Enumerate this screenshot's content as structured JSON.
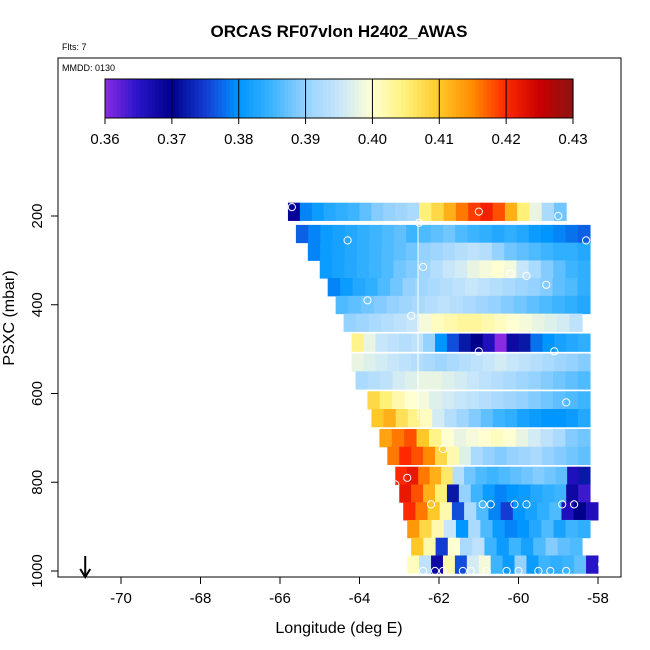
{
  "chart_data": {
    "type": "heatmap",
    "title": "ORCAS RF07vlon H2402_AWAS",
    "annotations": [
      "Flts: 7",
      "MMDD: 0130"
    ],
    "xlabel": "Longitude (deg E)",
    "ylabel": "PSXC (mbar)",
    "xlim": [
      -71.5,
      -57.5
    ],
    "ylim": [
      1010,
      100
    ],
    "y_reversed": true,
    "x_ticks": [
      "-70",
      "-68",
      "-66",
      "-64",
      "-62",
      "-60",
      "-58"
    ],
    "x_tick_values": [
      -70,
      -68,
      -66,
      -64,
      -62,
      -60,
      -58
    ],
    "y_ticks": [
      "200",
      "400",
      "600",
      "800",
      "1000"
    ],
    "y_tick_values": [
      200,
      400,
      600,
      800,
      1000
    ],
    "colorbar": {
      "ticks": [
        "0.36",
        "0.37",
        "0.38",
        "0.39",
        "0.40",
        "0.41",
        "0.42",
        "0.43"
      ],
      "tick_values": [
        0.36,
        0.37,
        0.38,
        0.39,
        0.4,
        0.41,
        0.42,
        0.43
      ],
      "range": [
        0.36,
        0.43
      ]
    },
    "arrow_longitude": -70.9,
    "cells": [
      {
        "p": 190,
        "x": [
          -65.8,
          -62.5
        ],
        "v": [
          0.369,
          0.379,
          0.381,
          0.383,
          0.384,
          0.385,
          0.387,
          0.389,
          0.39,
          0.391,
          0.392
        ]
      },
      {
        "p": 190,
        "x": [
          -62.5,
          -58.8
        ],
        "v": [
          0.405,
          0.408,
          0.412,
          0.416,
          0.419,
          0.421,
          0.418,
          0.412,
          0.405,
          0.398,
          0.392,
          0.388
        ]
      },
      {
        "p": 240,
        "x": [
          -65.6,
          -58.2
        ],
        "v": [
          0.377,
          0.379,
          0.381,
          0.382,
          0.383,
          0.384,
          0.385,
          0.386,
          0.387,
          0.385,
          0.386,
          0.387,
          0.388,
          0.386,
          0.385,
          0.384,
          0.383,
          0.384,
          0.383,
          0.381,
          0.38,
          0.379,
          0.378,
          0.377
        ]
      },
      {
        "p": 280,
        "x": [
          -65.3,
          -58.2
        ],
        "v": [
          0.379,
          0.381,
          0.382,
          0.383,
          0.384,
          0.385,
          0.386,
          0.387,
          0.388,
          0.39,
          0.391,
          0.392,
          0.393,
          0.394,
          0.393,
          0.39,
          0.388,
          0.387,
          0.386,
          0.385,
          0.384,
          0.384,
          0.383
        ]
      },
      {
        "p": 320,
        "x": [
          -65.0,
          -58.2
        ],
        "v": [
          0.381,
          0.382,
          0.383,
          0.384,
          0.385,
          0.386,
          0.388,
          0.389,
          0.391,
          0.393,
          0.395,
          0.396,
          0.398,
          0.399,
          0.4,
          0.399,
          0.395,
          0.392,
          0.389,
          0.387,
          0.385,
          0.384
        ]
      },
      {
        "p": 360,
        "x": [
          -64.8,
          -58.2
        ],
        "v": [
          0.379,
          0.381,
          0.383,
          0.384,
          0.386,
          0.388,
          0.39,
          0.391,
          0.392,
          0.393,
          0.394,
          0.395,
          0.394,
          0.393,
          0.392,
          0.391,
          0.39,
          0.389,
          0.387,
          0.386,
          0.384
        ]
      },
      {
        "p": 400,
        "x": [
          -64.6,
          -58.2
        ],
        "v": [
          0.386,
          0.387,
          0.388,
          0.389,
          0.39,
          0.391,
          0.392,
          0.393,
          0.394,
          0.393,
          0.392,
          0.391,
          0.39,
          0.389,
          0.388,
          0.387,
          0.386,
          0.385,
          0.384,
          0.383
        ]
      },
      {
        "p": 440,
        "x": [
          -64.4,
          -58.4
        ],
        "v": [
          0.39,
          0.391,
          0.392,
          0.393,
          0.394,
          0.395,
          0.399,
          0.401,
          0.402,
          0.403,
          0.403,
          0.402,
          0.401,
          0.4,
          0.399,
          0.398,
          0.397,
          0.396,
          0.394
        ]
      },
      {
        "p": 485,
        "x": [
          -64.2,
          -58.2
        ],
        "v": [
          0.404,
          0.398,
          0.395,
          0.394,
          0.393,
          0.394,
          0.39,
          0.38,
          0.376,
          0.372,
          0.37,
          0.366,
          0.36,
          0.368,
          0.372,
          0.378,
          0.38,
          0.382,
          0.383,
          0.384
        ]
      },
      {
        "p": 530,
        "x": [
          -64.2,
          -58.2
        ],
        "v": [
          0.398,
          0.397,
          0.396,
          0.395,
          0.394,
          0.393,
          0.392,
          0.391,
          0.392,
          0.393,
          0.394,
          0.395,
          0.396,
          0.395,
          0.394,
          0.393,
          0.392,
          0.391,
          0.39,
          0.389
        ]
      },
      {
        "p": 570,
        "x": [
          -64.1,
          -58.2
        ],
        "v": [
          0.392,
          0.393,
          0.394,
          0.396,
          0.397,
          0.398,
          0.398,
          0.397,
          0.396,
          0.395,
          0.394,
          0.393,
          0.392,
          0.391,
          0.39,
          0.389,
          0.388,
          0.387,
          0.386
        ]
      },
      {
        "p": 615,
        "x": [
          -63.8,
          -58.2
        ],
        "v": [
          0.408,
          0.405,
          0.402,
          0.4,
          0.399,
          0.397,
          0.396,
          0.395,
          0.394,
          0.393,
          0.392,
          0.391,
          0.39,
          0.389,
          0.388,
          0.387,
          0.386,
          0.385
        ]
      },
      {
        "p": 655,
        "x": [
          -63.7,
          -58.2
        ],
        "v": [
          0.41,
          0.412,
          0.407,
          0.404,
          0.401,
          0.396,
          0.393,
          0.391,
          0.389,
          0.387,
          0.385,
          0.384,
          0.382,
          0.381,
          0.38,
          0.38,
          0.381,
          0.383
        ]
      },
      {
        "p": 700,
        "x": [
          -63.5,
          -58.2
        ],
        "v": [
          0.413,
          0.416,
          0.418,
          0.41,
          0.404,
          0.4,
          0.398,
          0.399,
          0.4,
          0.401,
          0.4,
          0.398,
          0.396,
          0.394,
          0.392,
          0.389,
          0.388
        ]
      },
      {
        "p": 740,
        "x": [
          -63.3,
          -58.2
        ],
        "v": [
          0.416,
          0.42,
          0.418,
          0.415,
          0.408,
          0.402,
          0.397,
          0.392,
          0.39,
          0.389,
          0.39,
          0.391,
          0.392,
          0.39,
          0.389,
          0.388,
          0.387
        ]
      },
      {
        "p": 785,
        "x": [
          -63.1,
          -58.2
        ],
        "v": [
          0.42,
          0.422,
          0.416,
          0.412,
          0.406,
          0.393,
          0.388,
          0.386,
          0.385,
          0.386,
          0.387,
          0.388,
          0.389,
          0.388,
          0.387,
          0.366,
          0.372
        ]
      },
      {
        "p": 825,
        "x": [
          -63.0,
          -58.2
        ],
        "v": [
          0.422,
          0.418,
          0.412,
          0.405,
          0.372,
          0.39,
          0.385,
          0.381,
          0.379,
          0.38,
          0.381,
          0.383,
          0.384,
          0.385,
          0.368,
          0.364
        ]
      },
      {
        "p": 865,
        "x": [
          -62.9,
          -58.0
        ],
        "v": [
          0.42,
          0.416,
          0.41,
          0.402,
          0.376,
          0.392,
          0.386,
          0.379,
          0.375,
          0.38,
          0.382,
          0.384,
          0.386,
          0.366,
          0.37,
          0.366
        ]
      },
      {
        "p": 905,
        "x": [
          -62.8,
          -58.2
        ],
        "v": [
          0.414,
          0.408,
          0.402,
          0.395,
          0.38,
          0.392,
          0.386,
          0.381,
          0.379,
          0.38,
          0.383,
          0.386,
          0.382,
          0.385,
          0.384
        ]
      },
      {
        "p": 945,
        "x": [
          -62.7,
          -58.4
        ],
        "v": [
          0.41,
          0.402,
          0.375,
          0.4,
          0.392,
          0.394,
          0.385,
          0.381,
          0.385,
          0.382,
          0.386,
          0.389,
          0.387,
          0.386
        ]
      },
      {
        "p": 985,
        "x": [
          -62.8,
          -58.0
        ],
        "v": [
          0.401,
          0.394,
          0.368,
          0.402,
          0.376,
          0.396,
          0.399,
          0.385,
          0.381,
          0.39,
          0.381,
          0.385,
          0.384,
          0.385,
          0.387,
          0.365
        ]
      }
    ],
    "points": [
      [
        -65.7,
        180
      ],
      [
        -62.5,
        215
      ],
      [
        -61.0,
        190
      ],
      [
        -59.0,
        200
      ],
      [
        -64.3,
        255
      ],
      [
        -58.3,
        255
      ],
      [
        -62.4,
        315
      ],
      [
        -60.2,
        330
      ],
      [
        -59.8,
        335
      ],
      [
        -59.3,
        355
      ],
      [
        -63.8,
        390
      ],
      [
        -62.7,
        425
      ],
      [
        -61.0,
        505
      ],
      [
        -59.1,
        505
      ],
      [
        -58.8,
        620
      ],
      [
        -61.9,
        725
      ],
      [
        -63.1,
        805
      ],
      [
        -62.8,
        790
      ],
      [
        -62.2,
        850
      ],
      [
        -60.9,
        850
      ],
      [
        -60.7,
        850
      ],
      [
        -60.1,
        850
      ],
      [
        -59.8,
        850
      ],
      [
        -58.9,
        850
      ],
      [
        -58.6,
        850
      ],
      [
        -62.9,
        1000
      ],
      [
        -62.4,
        1000
      ],
      [
        -62.1,
        1000
      ],
      [
        -61.9,
        1000
      ],
      [
        -61.4,
        1000
      ],
      [
        -61.2,
        1000
      ],
      [
        -60.8,
        1000
      ],
      [
        -60.3,
        1000
      ],
      [
        -60.0,
        1000
      ],
      [
        -59.5,
        1000
      ],
      [
        -59.2,
        1000
      ],
      [
        -58.8,
        1000
      ],
      [
        -57.9,
        985
      ]
    ]
  }
}
